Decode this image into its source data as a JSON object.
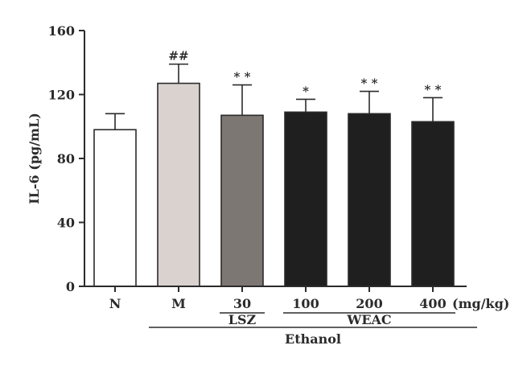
{
  "chart_data": {
    "type": "bar",
    "ylabel": "IL-6 (pg/mL)",
    "ylim": [
      0,
      160
    ],
    "yticks": [
      0,
      40,
      80,
      120,
      160
    ],
    "grid": false,
    "unit_label": "(mg/kg)",
    "bars": [
      {
        "label": "N",
        "value": 98,
        "error": 10,
        "annotation": "",
        "color": "#ffffff"
      },
      {
        "label": "M",
        "value": 127,
        "error": 12,
        "annotation": "##",
        "color": "#d9d2cf"
      },
      {
        "label": "30",
        "value": 107,
        "error": 19,
        "annotation": "* *",
        "color": "#7d7773"
      },
      {
        "label": "100",
        "value": 109,
        "error": 8,
        "annotation": "*",
        "color": "#1f1f1f"
      },
      {
        "label": "200",
        "value": 108,
        "error": 14,
        "annotation": "* *",
        "color": "#1f1f1f"
      },
      {
        "label": "400",
        "value": 103,
        "error": 15,
        "annotation": "* *",
        "color": "#1f1f1f"
      }
    ],
    "groups": [
      {
        "label": "LSZ",
        "from": 2,
        "to": 2,
        "level": 1
      },
      {
        "label": "WEAC",
        "from": 3,
        "to": 5,
        "level": 1
      },
      {
        "label": "Ethanol",
        "from": 1,
        "to": 5,
        "level": 2
      }
    ]
  }
}
